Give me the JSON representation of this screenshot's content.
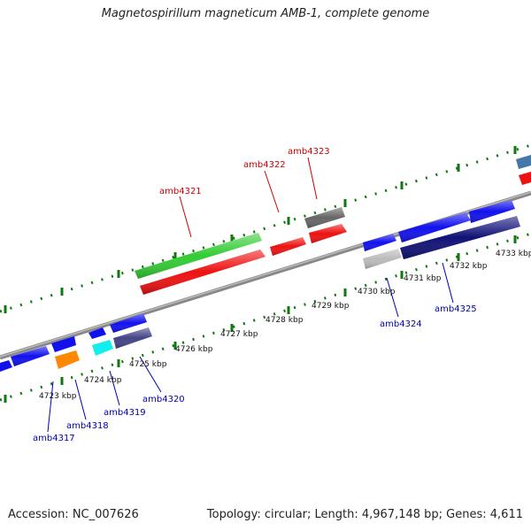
{
  "title": "Magnetospirillum magneticum AMB-1, complete genome",
  "footer": {
    "accession": "Accession: NC_007626",
    "summary": "Topology: circular; Length: 4,967,148 bp; Genes: 4,611"
  },
  "ticks": [
    "4723 kbp",
    "4724 kbp",
    "4725 kbp",
    "4726 kbp",
    "4727 kbp",
    "4728 kbp",
    "4729 kbp",
    "4730 kbp",
    "4731 kbp",
    "4732 kbp",
    "4733 kbp"
  ],
  "genes_top": [
    "amb4321",
    "amb4322",
    "amb4323"
  ],
  "genes_bottom": [
    "amb4317",
    "amb4318",
    "amb4319",
    "amb4320",
    "amb4324",
    "amb4325"
  ],
  "colors": {
    "red": "#ee1111",
    "green": "#33cc33",
    "blue": "#1111ee",
    "navy": "#111177",
    "cyan": "#11eeee",
    "orange": "#ff8800",
    "gray": "#666666",
    "lightgray": "#bbbbbb",
    "steel": "#4477aa",
    "slate": "#444488",
    "backbone": "#888888",
    "dots": "#117711"
  }
}
